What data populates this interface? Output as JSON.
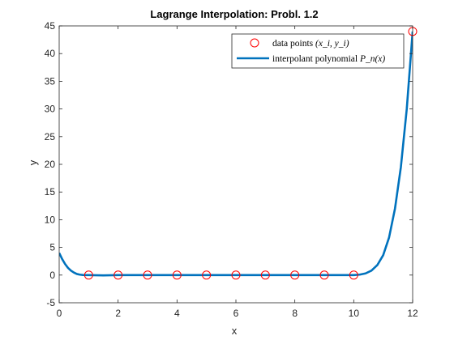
{
  "chart_data": {
    "type": "line",
    "title": "Lagrange Interpolation: Probl. 1.2",
    "xlabel": "x",
    "ylabel": "y",
    "xlim": [
      0,
      12
    ],
    "ylim": [
      -5,
      45
    ],
    "xticks": [
      0,
      2,
      4,
      6,
      8,
      10,
      12
    ],
    "yticks": [
      -5,
      0,
      5,
      10,
      15,
      20,
      25,
      30,
      35,
      40,
      45
    ],
    "grid": false,
    "box": true,
    "legend_position": "top-right",
    "series": [
      {
        "name": "data points (x_i, y_i)",
        "kind": "markers",
        "marker": "circle",
        "color": "#ff0000",
        "x": [
          1,
          2,
          3,
          4,
          5,
          6,
          7,
          8,
          9,
          10,
          12
        ],
        "y": [
          0,
          0,
          0,
          0,
          0,
          0,
          0,
          0,
          0,
          0,
          44
        ]
      },
      {
        "name": "interpolant polynomial P_n(x)",
        "kind": "line",
        "color": "#0072bd",
        "x": [
          0,
          0.1,
          0.2,
          0.3,
          0.4,
          0.5,
          0.6,
          0.7,
          0.8,
          0.9,
          1,
          1.5,
          2,
          3,
          4,
          5,
          6,
          7,
          8,
          9,
          10,
          10.2,
          10.4,
          10.6,
          10.8,
          11,
          11.2,
          11.4,
          11.6,
          11.8,
          12
        ],
        "y": [
          4.0,
          2.9,
          2.0,
          1.3,
          0.8,
          0.45,
          0.2,
          0.08,
          0.02,
          0.0,
          0,
          -0.05,
          0,
          0,
          0,
          0,
          0,
          0,
          0,
          0,
          0,
          0.08,
          0.3,
          0.8,
          1.8,
          3.6,
          6.8,
          12,
          19.5,
          30,
          44
        ]
      }
    ]
  },
  "legend": {
    "points_label": "data points ",
    "points_math": "(x_i, y_i)",
    "line_label": "interpolant polynomial ",
    "line_math": "P_n(x)"
  }
}
